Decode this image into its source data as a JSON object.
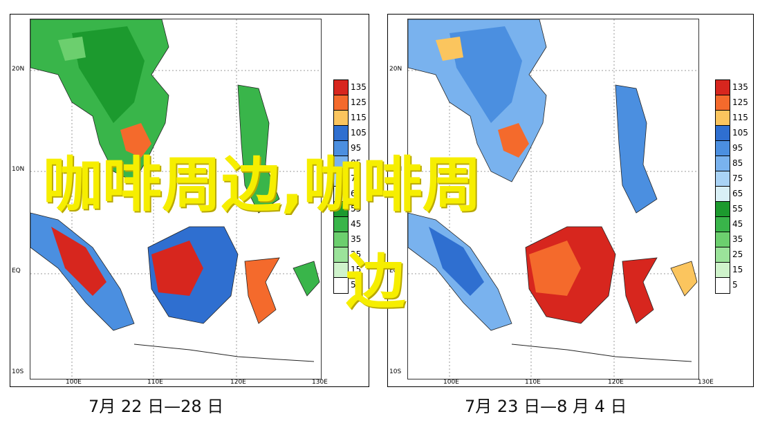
{
  "panels": [
    {
      "caption": "7月 22 日—28 日",
      "lat_labels": [
        "20N",
        "10N",
        "EQ",
        "10S"
      ],
      "lon_labels": [
        "100E",
        "110E",
        "120E",
        "130E"
      ],
      "pattern": "left"
    },
    {
      "caption": "7月 23 日—8 月 4 日",
      "lat_labels": [
        "20N",
        "10N",
        "EQ",
        "10S"
      ],
      "lon_labels": [
        "100E",
        "110E",
        "120E",
        "130E"
      ],
      "pattern": "right"
    }
  ],
  "colorbar": {
    "levels": [
      "135",
      "125",
      "115",
      "105",
      "95",
      "85",
      "75",
      "65",
      "55",
      "45",
      "35",
      "25",
      "15",
      "5"
    ],
    "colors": [
      "#d7261e",
      "#f46a2c",
      "#fbc55e",
      "#2f6fd0",
      "#4b8fe0",
      "#79b2ee",
      "#a9d3f5",
      "#d9f0f6",
      "#1c9a2e",
      "#39b54a",
      "#6ccf6e",
      "#9be39a",
      "#cff3cb",
      "#ffffff"
    ]
  },
  "watermark": {
    "line1": "咖啡周边,咖啡周",
    "line2": "边"
  }
}
